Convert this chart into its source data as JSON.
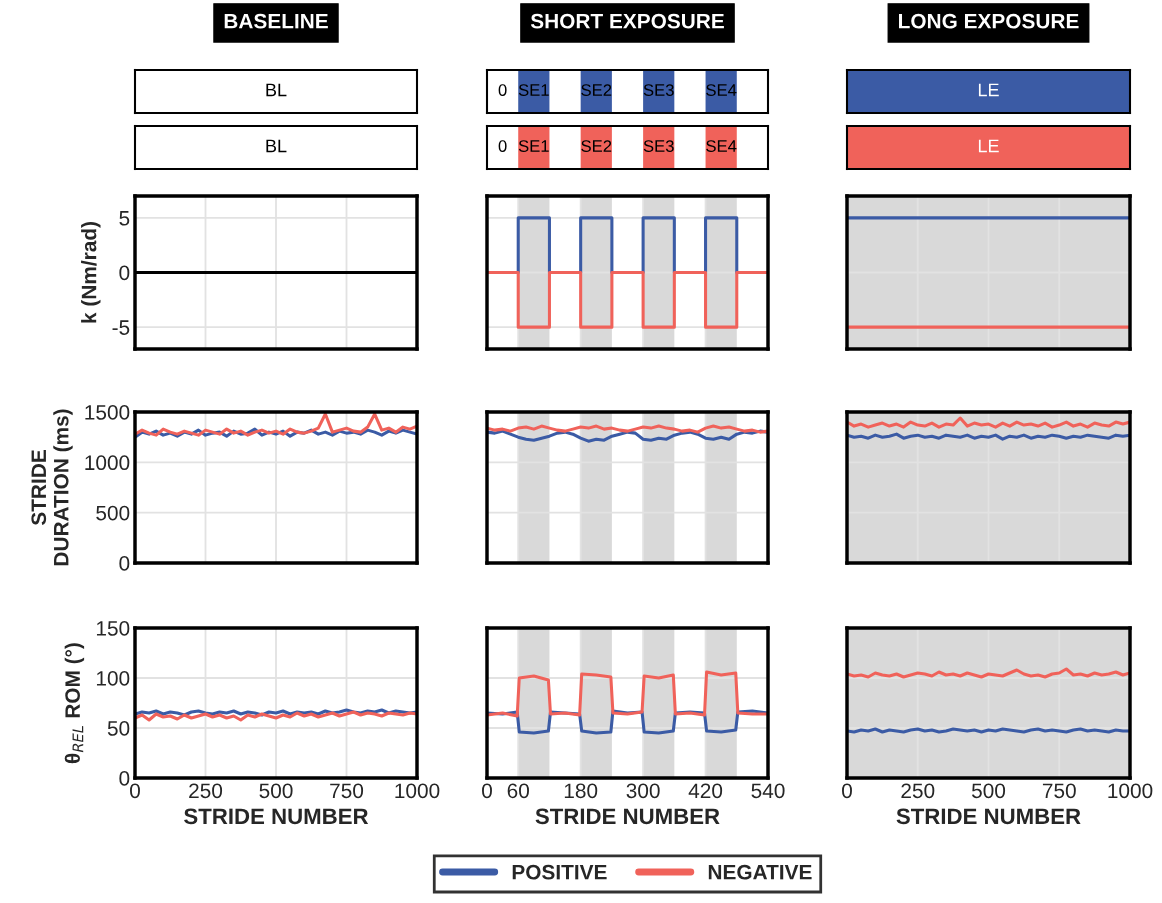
{
  "chart_data": [
    {
      "type": "other",
      "title": "BASELINE",
      "categories": [
        "BL"
      ],
      "colors": [
        "#ffffff"
      ]
    },
    {
      "type": "other",
      "title": "SHORT EXPOSURE",
      "categories": [
        "0",
        "SE1",
        null,
        "SE2",
        null,
        "SE3",
        null,
        "SE4",
        null
      ],
      "colors": [
        "#ffffff",
        "#3b5ba5",
        "#ffffff",
        "#3b5ba5",
        "#ffffff",
        "#3b5ba5",
        "#ffffff",
        "#3b5ba5",
        "#ffffff"
      ]
    },
    {
      "type": "other",
      "title": "LONG EXPOSURE",
      "categories": [
        "LE"
      ],
      "colors": [
        "#3b5ba5"
      ]
    },
    {
      "type": "other",
      "categories": [
        "BL"
      ],
      "colors": [
        "#ffffff"
      ]
    },
    {
      "type": "other",
      "categories": [
        "0",
        "SE1",
        null,
        "SE2",
        null,
        "SE3",
        null,
        "SE4",
        null
      ],
      "colors": [
        "#ffffff",
        "#f0625a",
        "#ffffff",
        "#f0625a",
        "#ffffff",
        "#f0625a",
        "#ffffff",
        "#f0625a",
        "#ffffff"
      ]
    },
    {
      "type": "other",
      "categories": [
        "LE"
      ],
      "colors": [
        "#f0625a"
      ]
    },
    {
      "type": "line",
      "ylabel": "k (Nm/rad)",
      "xlim": [
        0,
        1000
      ],
      "ylim": [
        -7,
        7
      ],
      "xticks": [
        0,
        250,
        500,
        750,
        1000
      ],
      "yticks": [
        -5,
        0,
        5
      ],
      "grid": true,
      "tick_labels": "y",
      "series": [
        {
          "color": "#000000",
          "x": [
            0,
            1000
          ],
          "values": [
            0,
            0
          ]
        }
      ]
    },
    {
      "type": "line",
      "xlim": [
        0,
        540
      ],
      "ylim": [
        -7,
        7
      ],
      "xticks": [
        0,
        60,
        180,
        300,
        420,
        540
      ],
      "yticks": [
        -5,
        0,
        5
      ],
      "grid": true,
      "tick_labels": false,
      "bands": [
        {
          "axis": "x",
          "from": 60,
          "to": 120,
          "color": "#d9d9d9"
        },
        {
          "axis": "x",
          "from": 180,
          "to": 240,
          "color": "#d9d9d9"
        },
        {
          "axis": "x",
          "from": 300,
          "to": 360,
          "color": "#d9d9d9"
        },
        {
          "axis": "x",
          "from": 420,
          "to": 480,
          "color": "#d9d9d9"
        }
      ],
      "series": [
        {
          "color": "#3b5ba5",
          "x": [
            0,
            60,
            60,
            120,
            120,
            180,
            180,
            240,
            240,
            300,
            300,
            360,
            360,
            420,
            420,
            480,
            480,
            540
          ],
          "values": [
            0,
            0,
            5,
            5,
            0,
            0,
            5,
            5,
            0,
            0,
            5,
            5,
            0,
            0,
            5,
            5,
            0,
            0
          ]
        },
        {
          "color": "#f0625a",
          "x": [
            0,
            60,
            60,
            120,
            120,
            180,
            180,
            240,
            240,
            300,
            300,
            360,
            360,
            420,
            420,
            480,
            480,
            540
          ],
          "values": [
            0,
            0,
            -5,
            -5,
            0,
            0,
            -5,
            -5,
            0,
            0,
            -5,
            -5,
            0,
            0,
            -5,
            -5,
            0,
            0
          ]
        }
      ]
    },
    {
      "type": "line",
      "xlim": [
        0,
        1000
      ],
      "ylim": [
        -7,
        7
      ],
      "xticks": [
        0,
        250,
        500,
        750,
        1000
      ],
      "yticks": [
        -5,
        0,
        5
      ],
      "grid": true,
      "tick_labels": false,
      "bands": [
        {
          "axis": "x",
          "from": 0,
          "to": 1000,
          "color": "#d9d9d9"
        }
      ],
      "series": [
        {
          "color": "#3b5ba5",
          "x": [
            0,
            1000
          ],
          "values": [
            5,
            5
          ]
        },
        {
          "color": "#f0625a",
          "x": [
            0,
            1000
          ],
          "values": [
            -5,
            -5
          ]
        }
      ]
    },
    {
      "type": "line",
      "ylabel": "STRIDE\nDURATION (ms)",
      "xlim": [
        0,
        1000
      ],
      "ylim": [
        0,
        1500
      ],
      "xticks": [
        0,
        250,
        500,
        750,
        1000
      ],
      "yticks": [
        0,
        500,
        1000,
        1500
      ],
      "grid": true,
      "tick_labels": "y",
      "series": [
        {
          "color": "#3b5ba5",
          "x": [
            0,
            25,
            50,
            75,
            100,
            125,
            150,
            175,
            200,
            225,
            250,
            275,
            300,
            325,
            350,
            375,
            400,
            425,
            450,
            475,
            500,
            525,
            550,
            575,
            600,
            625,
            650,
            675,
            700,
            725,
            750,
            775,
            800,
            825,
            850,
            875,
            900,
            925,
            950,
            975,
            1000
          ],
          "values": [
            1250,
            1300,
            1280,
            1310,
            1270,
            1290,
            1260,
            1300,
            1280,
            1320,
            1270,
            1290,
            1300,
            1260,
            1310,
            1280,
            1290,
            1330,
            1270,
            1300,
            1280,
            1310,
            1260,
            1300,
            1290,
            1320,
            1280,
            1300,
            1270,
            1310,
            1290,
            1300,
            1280,
            1320,
            1300,
            1270,
            1310,
            1290,
            1320,
            1300,
            1280
          ]
        },
        {
          "color": "#f0625a",
          "x": [
            0,
            25,
            50,
            75,
            100,
            125,
            150,
            175,
            200,
            225,
            250,
            275,
            300,
            325,
            350,
            375,
            400,
            425,
            450,
            475,
            500,
            525,
            550,
            575,
            600,
            625,
            650,
            675,
            700,
            725,
            750,
            775,
            800,
            825,
            850,
            875,
            900,
            925,
            950,
            975,
            1000
          ],
          "values": [
            1280,
            1320,
            1290,
            1270,
            1330,
            1300,
            1280,
            1310,
            1290,
            1270,
            1320,
            1300,
            1280,
            1330,
            1290,
            1310,
            1270,
            1300,
            1320,
            1290,
            1310,
            1280,
            1330,
            1300,
            1290,
            1310,
            1340,
            1480,
            1300,
            1320,
            1340,
            1310,
            1300,
            1350,
            1480,
            1320,
            1340,
            1300,
            1350,
            1330,
            1360
          ]
        }
      ]
    },
    {
      "type": "line",
      "xlim": [
        0,
        540
      ],
      "ylim": [
        0,
        1500
      ],
      "xticks": [
        0,
        60,
        180,
        300,
        420,
        540
      ],
      "yticks": [
        0,
        500,
        1000,
        1500
      ],
      "grid": true,
      "tick_labels": false,
      "bands": [
        {
          "axis": "x",
          "from": 60,
          "to": 120,
          "color": "#d9d9d9"
        },
        {
          "axis": "x",
          "from": 180,
          "to": 240,
          "color": "#d9d9d9"
        },
        {
          "axis": "x",
          "from": 300,
          "to": 360,
          "color": "#d9d9d9"
        },
        {
          "axis": "x",
          "from": 420,
          "to": 480,
          "color": "#d9d9d9"
        }
      ],
      "series": [
        {
          "color": "#3b5ba5",
          "x": [
            0,
            15,
            30,
            45,
            60,
            75,
            90,
            105,
            120,
            135,
            150,
            165,
            180,
            195,
            210,
            225,
            240,
            255,
            270,
            285,
            300,
            315,
            330,
            345,
            360,
            375,
            390,
            405,
            420,
            435,
            450,
            465,
            480,
            495,
            510,
            525,
            540
          ],
          "values": [
            1300,
            1290,
            1310,
            1280,
            1250,
            1230,
            1220,
            1240,
            1260,
            1290,
            1300,
            1280,
            1240,
            1210,
            1230,
            1220,
            1260,
            1280,
            1300,
            1290,
            1230,
            1220,
            1240,
            1230,
            1270,
            1290,
            1300,
            1280,
            1240,
            1230,
            1250,
            1230,
            1280,
            1300,
            1290,
            1310,
            1300
          ]
        },
        {
          "color": "#f0625a",
          "x": [
            0,
            15,
            30,
            45,
            60,
            75,
            90,
            105,
            120,
            135,
            150,
            165,
            180,
            195,
            210,
            225,
            240,
            255,
            270,
            285,
            300,
            315,
            330,
            345,
            360,
            375,
            390,
            405,
            420,
            435,
            450,
            465,
            480,
            495,
            510,
            525,
            540
          ],
          "values": [
            1340,
            1320,
            1330,
            1310,
            1340,
            1350,
            1330,
            1360,
            1340,
            1320,
            1310,
            1330,
            1350,
            1340,
            1360,
            1330,
            1340,
            1320,
            1310,
            1330,
            1350,
            1340,
            1360,
            1340,
            1330,
            1310,
            1320,
            1300,
            1340,
            1360,
            1340,
            1350,
            1330,
            1310,
            1320,
            1300,
            1310
          ]
        }
      ]
    },
    {
      "type": "line",
      "xlim": [
        0,
        1000
      ],
      "ylim": [
        0,
        1500
      ],
      "xticks": [
        0,
        250,
        500,
        750,
        1000
      ],
      "yticks": [
        0,
        500,
        1000,
        1500
      ],
      "grid": true,
      "tick_labels": false,
      "bands": [
        {
          "axis": "x",
          "from": 0,
          "to": 1000,
          "color": "#d9d9d9"
        }
      ],
      "series": [
        {
          "color": "#3b5ba5",
          "x": [
            0,
            25,
            50,
            75,
            100,
            125,
            150,
            175,
            200,
            225,
            250,
            275,
            300,
            325,
            350,
            375,
            400,
            425,
            450,
            475,
            500,
            525,
            550,
            575,
            600,
            625,
            650,
            675,
            700,
            725,
            750,
            775,
            800,
            825,
            850,
            875,
            900,
            925,
            950,
            975,
            1000
          ],
          "values": [
            1270,
            1250,
            1260,
            1240,
            1270,
            1250,
            1260,
            1280,
            1240,
            1260,
            1270,
            1250,
            1260,
            1240,
            1270,
            1260,
            1250,
            1270,
            1240,
            1260,
            1250,
            1270,
            1230,
            1260,
            1250,
            1270,
            1240,
            1260,
            1250,
            1270,
            1260,
            1240,
            1260,
            1250,
            1270,
            1260,
            1250,
            1240,
            1270,
            1260,
            1270
          ]
        },
        {
          "color": "#f0625a",
          "x": [
            0,
            25,
            50,
            75,
            100,
            125,
            150,
            175,
            200,
            225,
            250,
            275,
            300,
            325,
            350,
            375,
            400,
            425,
            450,
            475,
            500,
            525,
            550,
            575,
            600,
            625,
            650,
            675,
            700,
            725,
            750,
            775,
            800,
            825,
            850,
            875,
            900,
            925,
            950,
            975,
            1000
          ],
          "values": [
            1400,
            1360,
            1380,
            1350,
            1370,
            1390,
            1360,
            1380,
            1350,
            1400,
            1370,
            1360,
            1390,
            1350,
            1380,
            1370,
            1440,
            1360,
            1390,
            1370,
            1380,
            1350,
            1390,
            1360,
            1400,
            1370,
            1380,
            1360,
            1390,
            1350,
            1370,
            1400,
            1360,
            1380,
            1350,
            1390,
            1370,
            1360,
            1400,
            1380,
            1400
          ]
        }
      ]
    },
    {
      "type": "line",
      "ylabel": "θ$_{REL}$ ROM (°)",
      "xlabel": "STRIDE NUMBER",
      "xlim": [
        0,
        1000
      ],
      "ylim": [
        0,
        150
      ],
      "xticks": [
        0,
        250,
        500,
        750,
        1000
      ],
      "yticks": [
        0,
        50,
        100,
        150
      ],
      "grid": true,
      "series": [
        {
          "color": "#3b5ba5",
          "x": [
            0,
            25,
            50,
            75,
            100,
            125,
            150,
            175,
            200,
            225,
            250,
            275,
            300,
            325,
            350,
            375,
            400,
            425,
            450,
            475,
            500,
            525,
            550,
            575,
            600,
            625,
            650,
            675,
            700,
            725,
            750,
            775,
            800,
            825,
            850,
            875,
            900,
            925,
            950,
            975,
            1000
          ],
          "values": [
            64,
            66,
            65,
            67,
            64,
            66,
            65,
            63,
            66,
            67,
            65,
            64,
            66,
            65,
            67,
            64,
            66,
            65,
            63,
            66,
            65,
            67,
            64,
            66,
            65,
            66,
            64,
            67,
            65,
            66,
            68,
            66,
            65,
            67,
            66,
            68,
            65,
            67,
            66,
            65,
            66
          ]
        },
        {
          "color": "#f0625a",
          "x": [
            0,
            25,
            50,
            75,
            100,
            125,
            150,
            175,
            200,
            225,
            250,
            275,
            300,
            325,
            350,
            375,
            400,
            425,
            450,
            475,
            500,
            525,
            550,
            575,
            600,
            625,
            650,
            675,
            700,
            725,
            750,
            775,
            800,
            825,
            850,
            875,
            900,
            925,
            950,
            975,
            1000
          ],
          "values": [
            60,
            63,
            58,
            64,
            61,
            62,
            59,
            63,
            60,
            62,
            64,
            61,
            63,
            60,
            62,
            58,
            63,
            61,
            64,
            62,
            60,
            63,
            61,
            65,
            62,
            64,
            61,
            63,
            65,
            62,
            64,
            66,
            63,
            65,
            64,
            62,
            65,
            64,
            63,
            65,
            64
          ]
        }
      ]
    },
    {
      "type": "line",
      "xlabel": "STRIDE NUMBER",
      "xlim": [
        0,
        540
      ],
      "ylim": [
        0,
        150
      ],
      "xticks": [
        0,
        60,
        180,
        300,
        420,
        540
      ],
      "yticks": [
        0,
        50,
        100,
        150
      ],
      "grid": true,
      "tick_labels": "x",
      "legend": "bottom",
      "bands": [
        {
          "axis": "x",
          "from": 60,
          "to": 120,
          "color": "#d9d9d9"
        },
        {
          "axis": "x",
          "from": 180,
          "to": 240,
          "color": "#d9d9d9"
        },
        {
          "axis": "x",
          "from": 300,
          "to": 360,
          "color": "#d9d9d9"
        },
        {
          "axis": "x",
          "from": 420,
          "to": 480,
          "color": "#d9d9d9"
        }
      ],
      "series": [
        {
          "name": "POSITIVE",
          "color": "#3b5ba5",
          "x": [
            0,
            30,
            58,
            62,
            90,
            118,
            122,
            150,
            178,
            182,
            210,
            238,
            242,
            270,
            298,
            302,
            330,
            358,
            362,
            390,
            418,
            422,
            450,
            478,
            482,
            510,
            540
          ],
          "values": [
            65,
            64,
            66,
            46,
            45,
            47,
            66,
            65,
            64,
            47,
            45,
            46,
            67,
            65,
            66,
            46,
            45,
            47,
            65,
            66,
            65,
            47,
            46,
            48,
            66,
            67,
            65
          ]
        },
        {
          "name": "NEGATIVE",
          "color": "#f0625a",
          "x": [
            0,
            30,
            58,
            62,
            90,
            118,
            122,
            150,
            178,
            182,
            210,
            238,
            242,
            270,
            298,
            302,
            330,
            358,
            362,
            390,
            418,
            422,
            450,
            478,
            482,
            510,
            540
          ],
          "values": [
            63,
            65,
            62,
            100,
            102,
            98,
            64,
            65,
            63,
            104,
            103,
            101,
            65,
            64,
            66,
            102,
            100,
            103,
            64,
            65,
            63,
            106,
            103,
            105,
            65,
            64,
            64
          ]
        }
      ]
    },
    {
      "type": "line",
      "xlabel": "STRIDE NUMBER",
      "xlim": [
        0,
        1000
      ],
      "ylim": [
        0,
        150
      ],
      "xticks": [
        0,
        250,
        500,
        750,
        1000
      ],
      "yticks": [
        0,
        50,
        100,
        150
      ],
      "grid": true,
      "tick_labels": "x",
      "bands": [
        {
          "axis": "x",
          "from": 0,
          "to": 1000,
          "color": "#d9d9d9"
        }
      ],
      "series": [
        {
          "color": "#3b5ba5",
          "x": [
            0,
            25,
            50,
            75,
            100,
            125,
            150,
            175,
            200,
            225,
            250,
            275,
            300,
            325,
            350,
            375,
            400,
            425,
            450,
            475,
            500,
            525,
            550,
            575,
            600,
            625,
            650,
            675,
            700,
            725,
            750,
            775,
            800,
            825,
            850,
            875,
            900,
            925,
            950,
            975,
            1000
          ],
          "values": [
            47,
            46,
            48,
            47,
            49,
            46,
            48,
            47,
            46,
            48,
            49,
            47,
            48,
            46,
            47,
            49,
            48,
            47,
            48,
            46,
            48,
            47,
            49,
            48,
            47,
            46,
            48,
            49,
            47,
            48,
            47,
            46,
            48,
            49,
            47,
            48,
            47,
            46,
            48,
            47,
            47
          ]
        },
        {
          "color": "#f0625a",
          "x": [
            0,
            25,
            50,
            75,
            100,
            125,
            150,
            175,
            200,
            225,
            250,
            275,
            300,
            325,
            350,
            375,
            400,
            425,
            450,
            475,
            500,
            525,
            550,
            575,
            600,
            625,
            650,
            675,
            700,
            725,
            750,
            775,
            800,
            825,
            850,
            875,
            900,
            925,
            950,
            975,
            1000
          ],
          "values": [
            104,
            102,
            103,
            101,
            105,
            103,
            102,
            104,
            101,
            103,
            105,
            104,
            102,
            106,
            103,
            104,
            102,
            105,
            103,
            101,
            104,
            103,
            102,
            105,
            108,
            104,
            102,
            103,
            101,
            104,
            105,
            109,
            103,
            104,
            102,
            105,
            103,
            104,
            106,
            103,
            105
          ]
        }
      ]
    }
  ]
}
